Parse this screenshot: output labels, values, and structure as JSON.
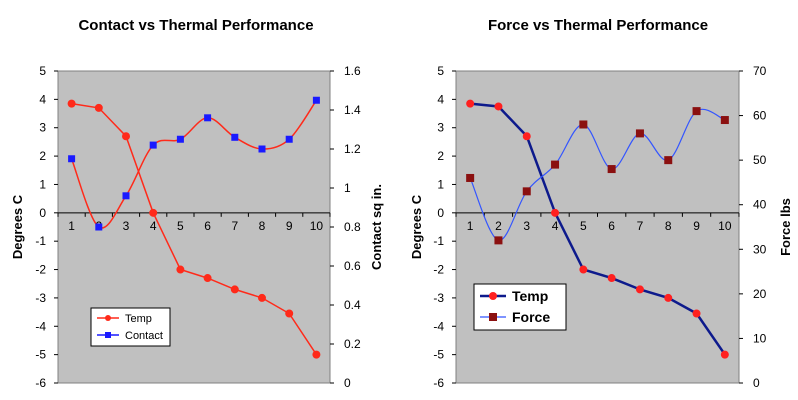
{
  "colors": {
    "plot_bg": "#c0c0c0",
    "temp_left": "#ff2a1a",
    "contact": "#1a1aff",
    "temp_right_line": "#0d1a8c",
    "temp_right_marker": "#ff2020",
    "force_line": "#3355ff",
    "force_marker": "#8b1010"
  },
  "chart_data": [
    {
      "type": "line",
      "title": "Contact vs Thermal Performance",
      "categories": [
        "1",
        "2",
        "3",
        "4",
        "5",
        "6",
        "7",
        "8",
        "9",
        "10"
      ],
      "ylabel": "Degrees C",
      "y2label": "Contact sq in.",
      "ylim": [
        -6,
        5
      ],
      "y2lim": [
        0,
        1.6
      ],
      "yticks": [
        "5",
        "4",
        "3",
        "2",
        "1",
        "0",
        "-1",
        "-2",
        "-3",
        "-4",
        "-5",
        "-6"
      ],
      "y2ticks": [
        "1.6",
        "1.4",
        "1.2",
        "1",
        "0.8",
        "0.6",
        "0.4",
        "0.2",
        "0"
      ],
      "legend_position": "bottom-left",
      "series": [
        {
          "name": "Temp",
          "axis": "left",
          "marker": "circle",
          "values": [
            3.85,
            3.7,
            2.7,
            0,
            -2,
            -2.3,
            -2.7,
            -3,
            -3.55,
            -5
          ]
        },
        {
          "name": "Contact",
          "axis": "right",
          "marker": "square",
          "values": [
            1.15,
            0.8,
            0.96,
            1.22,
            1.25,
            1.36,
            1.26,
            1.2,
            1.25,
            1.45
          ]
        }
      ]
    },
    {
      "type": "line",
      "title": "Force  vs Thermal Performance",
      "categories": [
        "1",
        "2",
        "3",
        "4",
        "5",
        "6",
        "7",
        "8",
        "9",
        "10"
      ],
      "ylabel": "Degrees C",
      "y2label": "Force lbs",
      "ylim": [
        -6,
        5
      ],
      "y2lim": [
        0,
        70
      ],
      "yticks": [
        "5",
        "4",
        "3",
        "2",
        "1",
        "0",
        "-1",
        "-2",
        "-3",
        "-4",
        "-5",
        "-6"
      ],
      "y2ticks": [
        "70",
        "60",
        "50",
        "40",
        "30",
        "20",
        "10",
        "0"
      ],
      "legend_position": "bottom-left",
      "series": [
        {
          "name": "Temp",
          "axis": "left",
          "marker": "circle",
          "values": [
            3.85,
            3.75,
            2.7,
            0,
            -2,
            -2.3,
            -2.7,
            -3,
            -3.55,
            -5
          ]
        },
        {
          "name": "Force",
          "axis": "right",
          "marker": "square",
          "values": [
            46,
            32,
            43,
            49,
            58,
            48,
            56,
            50,
            61,
            59
          ]
        }
      ]
    }
  ]
}
